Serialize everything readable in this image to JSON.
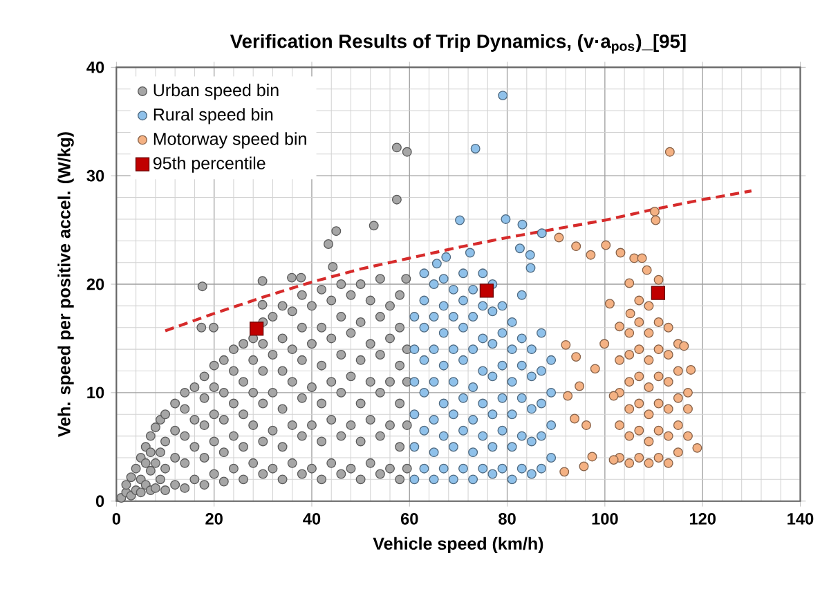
{
  "chart_data": {
    "type": "scatter",
    "title": "Verification Results of Trip Dynamics, (v·a$_{pos}$)_[95]",
    "xlabel": "Vehicle speed (km/h)",
    "ylabel": "Veh. speed per positive accel. (W/kg)",
    "xlim": [
      0,
      140
    ],
    "ylim": [
      0,
      40
    ],
    "xticks": [
      0,
      20,
      40,
      60,
      80,
      100,
      120,
      140
    ],
    "yticks": [
      0,
      10,
      20,
      30,
      40
    ],
    "grid": true,
    "legend": "top left",
    "marker": "circle",
    "series": [
      {
        "name": "Urban speed bin",
        "color": "#a6a6a6",
        "x": [
          1,
          2,
          2,
          3,
          3,
          4,
          4,
          5,
          5,
          5,
          6,
          6,
          6,
          7,
          7,
          7,
          7,
          8,
          8,
          8,
          9,
          9,
          9,
          10,
          10,
          10,
          10,
          12,
          12,
          12,
          12,
          14,
          14,
          14,
          14,
          14,
          16,
          16,
          16,
          16,
          18,
          18,
          18,
          18,
          18,
          20,
          20,
          20,
          20,
          20,
          22,
          22,
          22,
          22,
          22,
          24,
          24,
          24,
          24,
          24,
          26,
          26,
          26,
          26,
          26,
          28,
          28,
          28,
          28,
          28,
          30,
          30,
          30,
          30,
          30,
          30,
          32,
          32,
          32,
          32,
          32,
          34,
          34,
          34,
          34,
          34,
          34,
          36,
          36,
          36,
          36,
          36,
          38,
          38,
          38,
          38,
          38,
          38,
          40,
          40,
          40,
          40,
          40,
          42,
          42,
          42,
          42,
          42,
          42,
          44,
          44,
          44,
          44,
          44,
          46,
          46,
          46,
          46,
          46,
          46,
          48,
          48,
          48,
          48,
          48,
          50,
          50,
          50,
          50,
          50,
          50,
          52,
          52,
          52,
          52,
          52,
          54,
          54,
          54,
          54,
          54,
          54,
          56,
          56,
          56,
          56,
          56,
          58,
          58,
          58,
          58,
          58,
          58,
          59.5,
          59.5,
          59.5,
          59.5,
          17.6,
          17.4,
          19.9,
          57.4,
          59.5,
          57.4,
          52.7,
          45,
          43.4,
          44.3,
          29.9,
          35.9,
          37.8,
          59.3,
          29.9
        ],
        "values": [
          0.3,
          0.8,
          1.5,
          0.5,
          2.2,
          1,
          3,
          0.8,
          2,
          4,
          1.5,
          3.5,
          5,
          1,
          2.8,
          4.5,
          6,
          1.2,
          3.5,
          6.8,
          2,
          4.5,
          7.5,
          1,
          3,
          5.5,
          8,
          1.5,
          4,
          6.5,
          9,
          1.2,
          3.5,
          6,
          8.5,
          10,
          2,
          5,
          7.5,
          10.5,
          1.5,
          4,
          7,
          9.5,
          11.5,
          2.5,
          5.5,
          8,
          10.5,
          12.5,
          1.8,
          4.5,
          7.5,
          10,
          13,
          3,
          6,
          9,
          12,
          14,
          2,
          5,
          8,
          11,
          14.5,
          3.5,
          7,
          10,
          13,
          15,
          2.5,
          5.5,
          9,
          12,
          14.5,
          16.5,
          3,
          6.5,
          10,
          13.5,
          17,
          2,
          5,
          8.5,
          12,
          15,
          18,
          3.5,
          7,
          11,
          14,
          17.5,
          2.5,
          6,
          9.5,
          13,
          16,
          19,
          3,
          7,
          10.5,
          14.5,
          18,
          2,
          5.5,
          9,
          12.5,
          16,
          19.5,
          3.5,
          7.5,
          11,
          15,
          18.5,
          2.5,
          6,
          10,
          13.5,
          17,
          20,
          3,
          7,
          11.5,
          15.5,
          19,
          2,
          5.5,
          9,
          13,
          16.5,
          20,
          3.5,
          7.5,
          11,
          14.5,
          18.5,
          2.5,
          6,
          10,
          13.5,
          17,
          20.5,
          3,
          7,
          11,
          15,
          18,
          2,
          5,
          9,
          12.5,
          16,
          19,
          3,
          7,
          11,
          14,
          19.8,
          16,
          16,
          32.6,
          32.2,
          27.8,
          25.4,
          24.9,
          23.7,
          21.6,
          20.3,
          20.6,
          20.6,
          20.5,
          18.1
        ]
      },
      {
        "name": "Rural speed bin",
        "color": "#8fc1ea",
        "x": [
          61,
          61,
          61,
          61,
          61,
          61,
          63,
          63,
          63,
          63,
          63,
          63,
          63,
          65,
          65,
          65,
          65,
          65,
          65,
          65,
          67,
          67,
          67,
          67,
          67,
          67,
          67,
          69,
          69,
          69,
          69,
          69,
          69,
          69,
          71,
          71,
          71,
          71,
          71,
          71,
          71,
          73,
          73,
          73,
          73,
          73,
          73,
          73,
          75,
          75,
          75,
          75,
          75,
          75,
          75,
          77,
          77,
          77,
          77,
          77,
          77,
          77,
          79,
          79,
          79,
          79,
          79,
          79,
          81,
          81,
          81,
          81,
          81,
          81,
          83,
          83,
          83,
          83,
          83,
          83,
          85,
          85,
          85,
          85,
          85,
          87,
          87,
          87,
          87,
          87,
          89,
          89,
          89,
          89,
          79.1,
          73.5,
          70.3,
          79.7,
          83.1,
          87.1,
          82.6,
          84.7,
          84.8,
          72.4,
          67.5,
          65.6
        ],
        "values": [
          2,
          5,
          8,
          11,
          14,
          17,
          3,
          6.5,
          10,
          13,
          16,
          18.5,
          21,
          2,
          4.5,
          7.5,
          11,
          14,
          17,
          20,
          3,
          6,
          9,
          12.5,
          15.5,
          18,
          20.5,
          2,
          5,
          8,
          11,
          14,
          17,
          19.5,
          3,
          6.5,
          9.5,
          13,
          16,
          18.5,
          21,
          2,
          4.5,
          7.5,
          10.5,
          14,
          17,
          19.5,
          3,
          6,
          9,
          12,
          15,
          18,
          21,
          2.5,
          5,
          8,
          11.5,
          14.5,
          17.5,
          20,
          3,
          6.5,
          9.5,
          12.5,
          15.5,
          18,
          2,
          5,
          8,
          11,
          14,
          16.5,
          3,
          6,
          9.5,
          12.5,
          15,
          19,
          2.5,
          5.5,
          8.5,
          11.5,
          14,
          3,
          6,
          9,
          12,
          15.5,
          4,
          7,
          10,
          13,
          37.4,
          32.5,
          25.9,
          26,
          25.5,
          24.7,
          23.3,
          22.7,
          21.5,
          22.9,
          22.5,
          21.9
        ]
      },
      {
        "name": "Motorway speed bin",
        "color": "#f4b183",
        "x": [
          103,
          103,
          103,
          103,
          105,
          105,
          105,
          105,
          105,
          105,
          107,
          107,
          107,
          107,
          107,
          107,
          107,
          109,
          109,
          109,
          109,
          109,
          109,
          109,
          111,
          111,
          111,
          111,
          111,
          111,
          111,
          113,
          113,
          113,
          113,
          113,
          113,
          115,
          115,
          115,
          115,
          115,
          117,
          117,
          117,
          90.6,
          94.1,
          97.1,
          100.2,
          103.2,
          106,
          107.6,
          108.6,
          105,
          101,
          105.2,
          103,
          113.3,
          110.2,
          110.4,
          92,
          94.1,
          99.9,
          116.2,
          117.6,
          118.9,
          91.7,
          95.7,
          97.4,
          96.2,
          93.8,
          92.4,
          94.8,
          98,
          101.8,
          101.8
        ],
        "values": [
          4,
          7,
          10,
          13,
          3.5,
          6,
          8.5,
          11,
          13.5,
          15.5,
          4,
          6.5,
          9,
          11.5,
          14,
          16.5,
          18.5,
          3.5,
          5.5,
          8,
          10.5,
          13,
          15.5,
          18,
          4,
          6.5,
          9,
          11.5,
          14,
          16.5,
          20.4,
          3.5,
          6,
          8.5,
          11,
          13.5,
          16,
          4.5,
          7,
          9.5,
          12,
          14.5,
          6,
          8.5,
          10,
          24.3,
          23.5,
          22.7,
          23.6,
          22.9,
          22.4,
          22.4,
          21.3,
          20.1,
          18.2,
          17.3,
          16.1,
          32.2,
          26.7,
          25.9,
          14.4,
          13.3,
          14.5,
          14.3,
          12.1,
          4.9,
          2.7,
          3.2,
          4.1,
          7,
          7.6,
          9.7,
          10.6,
          12.2,
          9.7,
          3.8
        ]
      },
      {
        "name": "95th percentile",
        "color": "#c00000",
        "marker": "square",
        "x": [
          28.7,
          75.8,
          110.9
        ],
        "values": [
          15.9,
          19.4,
          19.2
        ]
      },
      {
        "type": "line",
        "color": "#d62b2b",
        "marker": "none",
        "line_style": "dashed",
        "x": [
          10,
          20,
          30,
          40,
          50,
          60,
          70,
          80,
          90,
          100,
          110,
          120,
          130
        ],
        "values": [
          15.7,
          17.3,
          18.8,
          20.2,
          21.4,
          22.4,
          23.4,
          24.3,
          25.1,
          25.9,
          26.9,
          27.8,
          28.6
        ]
      }
    ]
  }
}
